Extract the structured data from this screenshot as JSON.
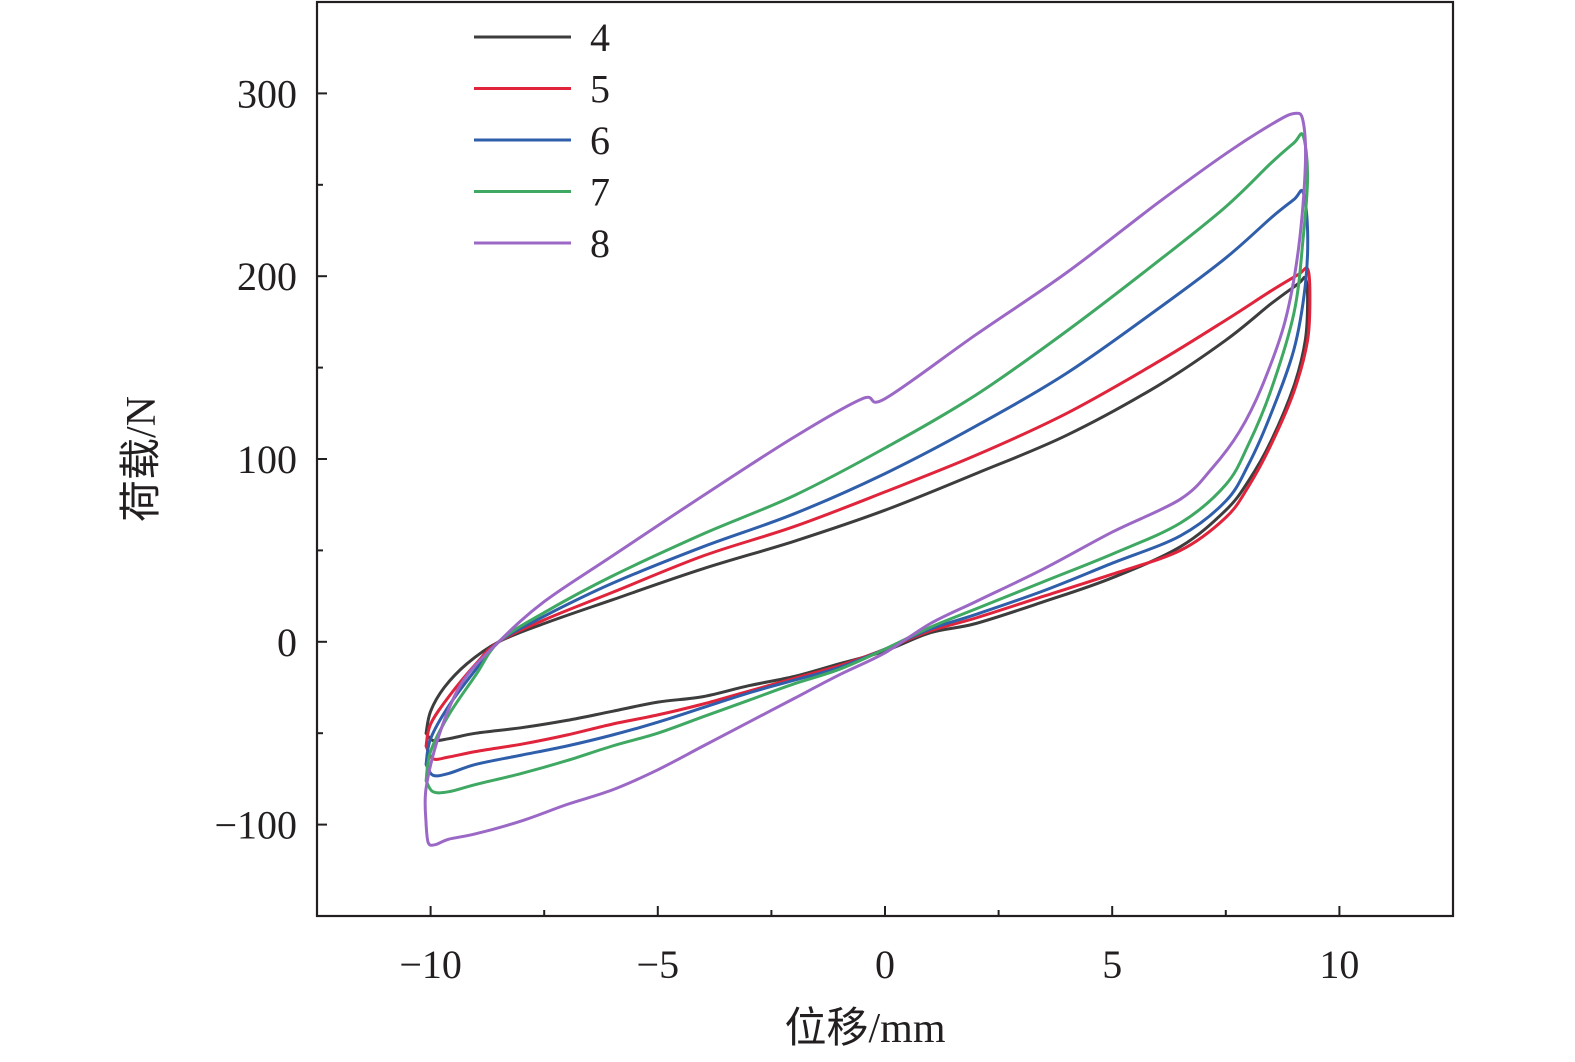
{
  "chart_data": {
    "type": "line",
    "xlabel": "位移/mm",
    "ylabel": "荷载/N",
    "xlim": [
      -12.5,
      12.5
    ],
    "ylim": [
      -150,
      350
    ],
    "x_ticks": [
      {
        "value": -10,
        "label": "−10"
      },
      {
        "value": -5,
        "label": "−5"
      },
      {
        "value": 0,
        "label": "0"
      },
      {
        "value": 5,
        "label": "5"
      },
      {
        "value": 10,
        "label": "10"
      }
    ],
    "y_ticks": [
      {
        "value": -100,
        "label": "−100"
      },
      {
        "value": 0,
        "label": "0"
      },
      {
        "value": 100,
        "label": "100"
      },
      {
        "value": 200,
        "label": "200"
      },
      {
        "value": 300,
        "label": "300"
      }
    ],
    "x_minor": [
      -7.5,
      -2.5,
      2.5,
      7.5
    ],
    "y_minor": [
      -50,
      50,
      150,
      250
    ],
    "grid": false,
    "legend_position": "top-left",
    "series": [
      {
        "name": "4",
        "color": "#3d3d3d",
        "x": [
          -10.1,
          -10.0,
          -9.7,
          -9.2,
          -8.5,
          -7.5,
          -6.0,
          -4.0,
          -2.0,
          0.0,
          2.0,
          4.0,
          6.0,
          7.5,
          8.5,
          9.1,
          9.25,
          9.3,
          9.25,
          9.0,
          8.5,
          8.0,
          7.5,
          6.5,
          5.0,
          3.5,
          2.0,
          1.0,
          0.0,
          -1.0,
          -2.0,
          -3.0,
          -4.0,
          -5.0,
          -6.0,
          -7.0,
          -8.0,
          -9.0,
          -9.6,
          -9.95,
          -10.1
        ],
        "y": [
          -50,
          -38,
          -25,
          -12,
          0,
          10,
          23,
          40,
          55,
          72,
          92,
          113,
          140,
          165,
          185,
          196,
          199,
          188,
          165,
          140,
          110,
          88,
          72,
          52,
          35,
          22,
          10,
          5,
          -5,
          -12,
          -19,
          -24,
          -30,
          -33,
          -38,
          -43,
          -47,
          -50,
          -53,
          -54,
          -50
        ]
      },
      {
        "name": "5",
        "color": "#e0243b",
        "x": [
          -10.1,
          -10.0,
          -9.6,
          -9.0,
          -8.5,
          -7.5,
          -6.0,
          -4.0,
          -2.0,
          0.0,
          2.0,
          4.0,
          6.0,
          7.5,
          8.5,
          9.1,
          9.3,
          9.35,
          9.3,
          9.0,
          8.5,
          8.0,
          7.5,
          6.5,
          5.0,
          3.5,
          2.0,
          1.0,
          0.0,
          -1.0,
          -2.0,
          -3.0,
          -4.0,
          -5.0,
          -6.0,
          -7.0,
          -8.0,
          -9.0,
          -9.6,
          -9.95,
          -10.1
        ],
        "y": [
          -57,
          -45,
          -30,
          -12,
          0,
          12,
          27,
          47,
          63,
          82,
          102,
          125,
          153,
          176,
          192,
          201,
          204,
          190,
          165,
          137,
          108,
          85,
          68,
          50,
          37,
          25,
          13,
          6,
          -4,
          -13,
          -20,
          -27,
          -34,
          -40,
          -45,
          -51,
          -56,
          -60,
          -63,
          -64,
          -57
        ]
      },
      {
        "name": "6",
        "color": "#2f5eab",
        "x": [
          -10.1,
          -10.0,
          -9.6,
          -9.0,
          -8.5,
          -7.5,
          -6.0,
          -4.0,
          -2.0,
          0.0,
          2.0,
          4.0,
          6.0,
          7.5,
          8.5,
          9.0,
          9.2,
          9.3,
          9.25,
          9.0,
          8.5,
          8.0,
          7.5,
          6.5,
          5.0,
          3.5,
          2.0,
          1.0,
          0.0,
          -1.0,
          -2.0,
          -3.0,
          -4.0,
          -5.0,
          -6.0,
          -7.0,
          -8.0,
          -9.0,
          -9.6,
          -9.95,
          -10.1
        ],
        "y": [
          -67,
          -53,
          -35,
          -15,
          0,
          14,
          32,
          52,
          70,
          92,
          118,
          147,
          182,
          210,
          232,
          242,
          246,
          225,
          195,
          160,
          125,
          97,
          77,
          58,
          43,
          28,
          15,
          7,
          -4,
          -14,
          -21,
          -28,
          -36,
          -44,
          -51,
          -57,
          -62,
          -67,
          -72,
          -73,
          -67
        ]
      },
      {
        "name": "7",
        "color": "#3fa862",
        "x": [
          -10.1,
          -10.0,
          -9.6,
          -9.0,
          -8.5,
          -7.5,
          -6.0,
          -4.0,
          -2.0,
          0.0,
          2.0,
          4.0,
          6.0,
          7.5,
          8.5,
          9.0,
          9.2,
          9.3,
          9.2,
          9.0,
          8.5,
          8.0,
          7.5,
          6.5,
          5.0,
          3.5,
          2.0,
          1.0,
          0.0,
          -1.0,
          -2.0,
          -3.0,
          -4.0,
          -5.0,
          -6.0,
          -7.0,
          -8.0,
          -9.0,
          -9.6,
          -9.95,
          -10.1
        ],
        "y": [
          -76,
          -60,
          -40,
          -18,
          0,
          16,
          36,
          59,
          80,
          106,
          135,
          170,
          208,
          238,
          262,
          273,
          277,
          255,
          220,
          180,
          138,
          108,
          86,
          65,
          48,
          33,
          18,
          8,
          -4,
          -15,
          -23,
          -32,
          -41,
          -50,
          -57,
          -65,
          -72,
          -78,
          -82,
          -82,
          -76
        ]
      },
      {
        "name": "8",
        "color": "#9b68c6",
        "x": [
          -10.1,
          -10.1,
          -9.8,
          -9.3,
          -8.5,
          -7.5,
          -6.0,
          -4.0,
          -2.0,
          -0.5,
          0.0,
          2.0,
          4.0,
          6.0,
          7.5,
          8.5,
          9.0,
          9.2,
          9.25,
          9.1,
          8.8,
          8.3,
          7.8,
          7.2,
          6.5,
          5.0,
          3.5,
          2.0,
          1.0,
          0.0,
          -1.0,
          -2.0,
          -3.0,
          -4.0,
          -5.0,
          -6.0,
          -7.0,
          -8.0,
          -9.0,
          -9.6,
          -9.9,
          -10.05,
          -10.1
        ],
        "y": [
          -100,
          -80,
          -50,
          -22,
          0,
          22,
          47,
          80,
          112,
          133,
          133,
          168,
          202,
          240,
          267,
          283,
          289,
          285,
          260,
          215,
          175,
          140,
          115,
          95,
          78,
          60,
          40,
          22,
          10,
          -6,
          -18,
          -31,
          -44,
          -57,
          -70,
          -81,
          -89,
          -98,
          -105,
          -108,
          -111,
          -110,
          -100
        ]
      }
    ]
  }
}
